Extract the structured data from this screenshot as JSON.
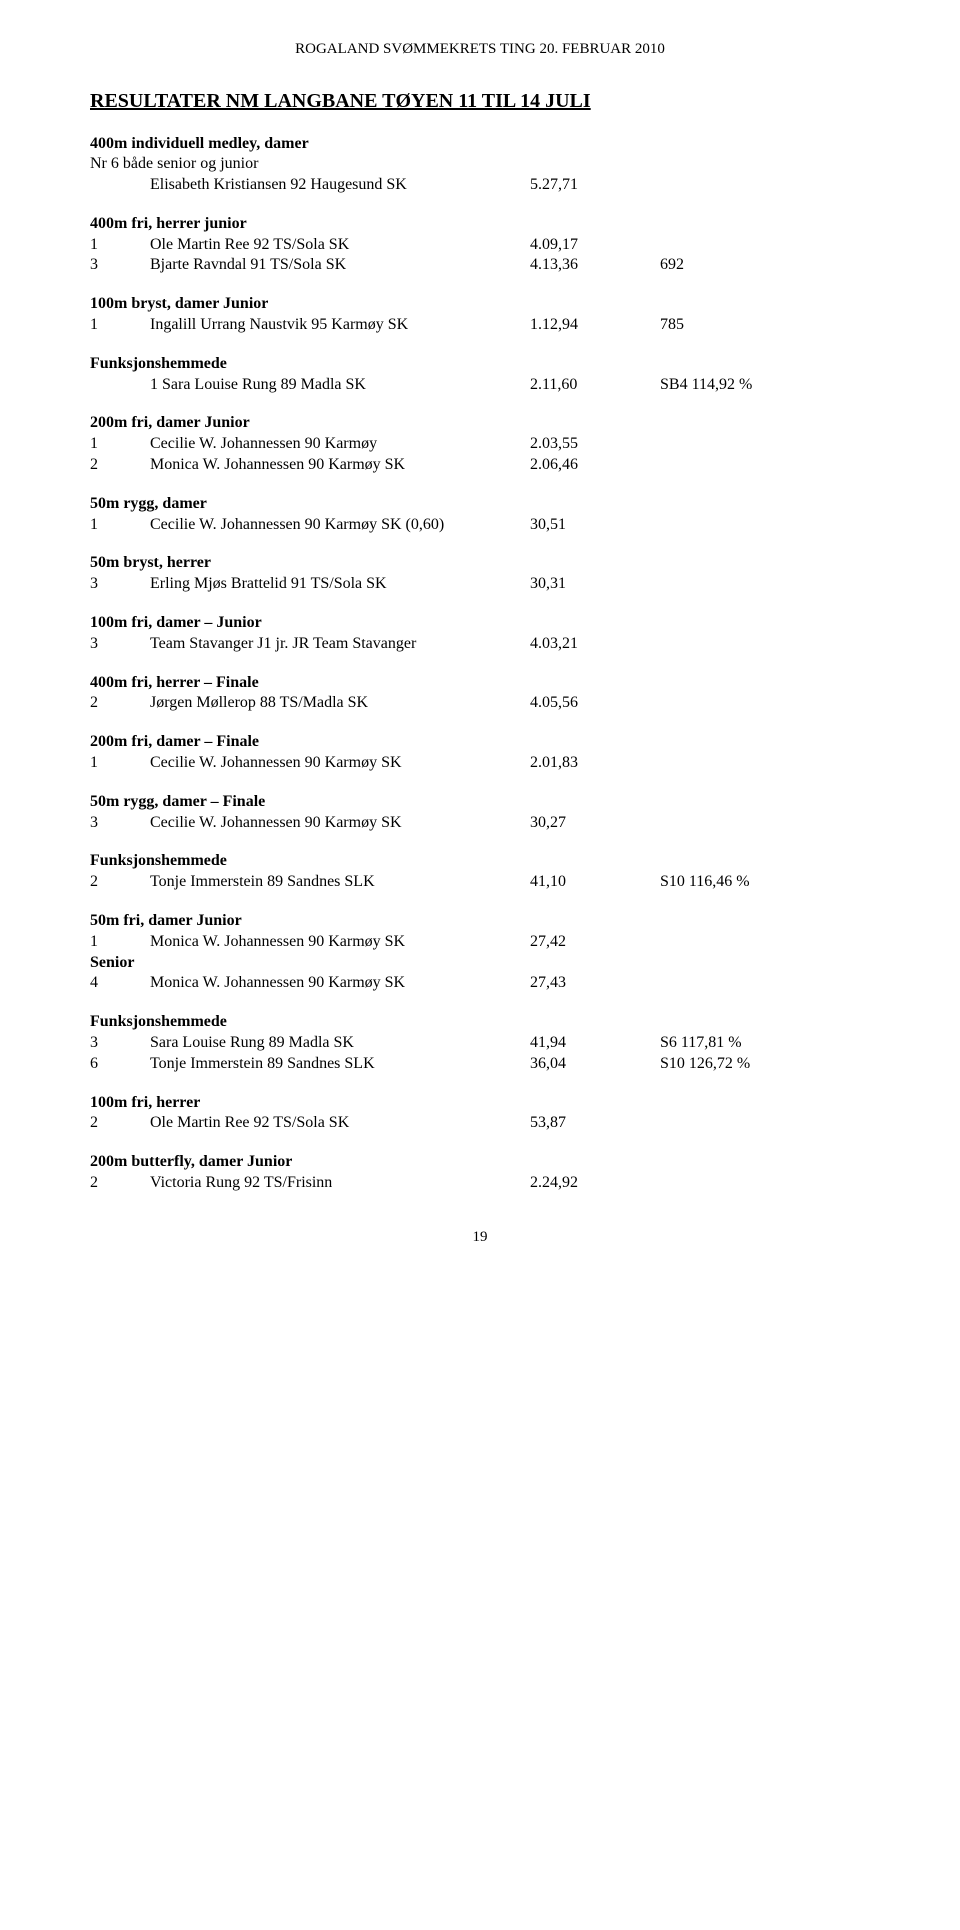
{
  "header": "ROGALAND SVØMMEKRETS TING 20. FEBRUAR 2010",
  "title": "RESULTATER NM LANGBANE TØYEN  11 TIL 14 JULI",
  "page_number": "19",
  "sections": [
    {
      "title": "400m individuell medley, damer",
      "subhead": "Nr 6 både senior og junior",
      "rows": [
        {
          "place": "",
          "name": "Elisabeth Kristiansen 92 Haugesund SK",
          "time": "5.27,71",
          "extra": ""
        }
      ]
    },
    {
      "title": "400m fri, herrer junior",
      "rows": [
        {
          "place": "1",
          "name": "Ole Martin Ree 92 TS/Sola SK",
          "time": "4.09,17",
          "extra": ""
        },
        {
          "place": "3",
          "name": "Bjarte Ravndal 91 TS/Sola SK",
          "time": "4.13,36",
          "extra": "692"
        }
      ]
    },
    {
      "title": "100m bryst, damer Junior",
      "rows": [
        {
          "place": "1",
          "name": "Ingalill Urrang Naustvik 95 Karmøy SK",
          "time": "1.12,94",
          "extra": "785"
        }
      ]
    },
    {
      "title": "Funksjonshemmede",
      "rows": [
        {
          "place": "",
          "name": "1 Sara Louise Rung 89 Madla SK",
          "time": "2.11,60",
          "extra": "SB4 114,92 %"
        }
      ]
    },
    {
      "title": "200m fri, damer Junior",
      "rows": [
        {
          "place": "1",
          "name": "Cecilie W. Johannessen 90 Karmøy",
          "time": "2.03,55",
          "extra": ""
        },
        {
          "place": "2",
          "name": "Monica W. Johannessen 90 Karmøy SK",
          "time": "2.06,46",
          "extra": ""
        }
      ]
    },
    {
      "title": "50m rygg, damer",
      "rows": [
        {
          "place": "1",
          "name": "Cecilie W. Johannessen 90 Karmøy SK (0,60)",
          "time": "30,51",
          "extra": ""
        }
      ]
    },
    {
      "title": "50m bryst, herrer",
      "rows": [
        {
          "place": "3",
          "name": "Erling Mjøs Brattelid 91 TS/Sola SK",
          "time": "30,31",
          "extra": ""
        }
      ]
    },
    {
      "title": "100m fri, damer – Junior",
      "rows": [
        {
          "place": "3",
          "name": "Team Stavanger J1 jr. JR Team Stavanger",
          "time": "4.03,21",
          "extra": ""
        }
      ]
    },
    {
      "title": "400m fri, herrer – Finale",
      "rows": [
        {
          "place": "2",
          "name": "Jørgen Møllerop 88 TS/Madla SK",
          "time": "4.05,56",
          "extra": ""
        }
      ]
    },
    {
      "title": "200m fri, damer – Finale",
      "rows": [
        {
          "place": "1",
          "name": "Cecilie W. Johannessen 90 Karmøy SK",
          "time": "2.01,83",
          "extra": ""
        }
      ]
    },
    {
      "title": "50m rygg, damer – Finale",
      "rows": [
        {
          "place": "3",
          "name": "Cecilie W. Johannessen 90 Karmøy SK",
          "time": "30,27",
          "extra": ""
        }
      ]
    },
    {
      "title": "Funksjonshemmede",
      "rows": [
        {
          "place": "2",
          "name": "Tonje Immerstein 89 Sandnes SLK",
          "time": "41,10",
          "extra": "S10 116,46 %"
        }
      ]
    },
    {
      "title": "50m fri, damer Junior",
      "rows": [
        {
          "place": "1",
          "name": "Monica W. Johannessen 90 Karmøy SK",
          "time": "27,42",
          "extra": ""
        }
      ],
      "senior_label": "Senior",
      "senior_rows": [
        {
          "place": "4",
          "name": "Monica W. Johannessen 90 Karmøy SK",
          "time": "27,43",
          "extra": ""
        }
      ]
    },
    {
      "title": "Funksjonshemmede",
      "rows": [
        {
          "place": "3",
          "name": "Sara Louise Rung 89 Madla SK",
          "time": "41,94",
          "extra": "S6 117,81 %"
        },
        {
          "place": "6",
          "name": "Tonje Immerstein 89 Sandnes SLK",
          "time": "36,04",
          "extra": "S10 126,72 %"
        }
      ]
    },
    {
      "title": "100m fri, herrer",
      "rows": [
        {
          "place": "2",
          "name": "Ole Martin Ree 92 TS/Sola SK",
          "time": "53,87",
          "extra": ""
        }
      ]
    },
    {
      "title": "200m butterfly, damer Junior",
      "rows": [
        {
          "place": "2",
          "name": "Victoria Rung 92 TS/Frisinn",
          "time": "2.24,92",
          "extra": ""
        }
      ]
    }
  ]
}
